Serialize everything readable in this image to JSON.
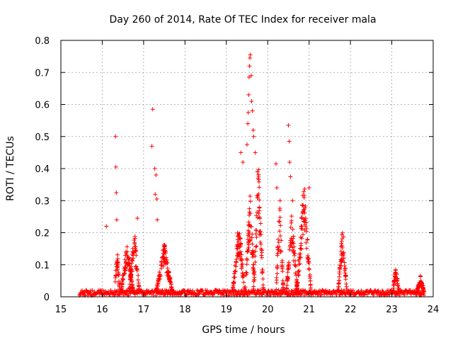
{
  "chart_data": {
    "type": "scatter",
    "title": "Day 260 of 2014, Rate Of TEC Index for receiver mala",
    "xlabel": "GPS time / hours",
    "ylabel": "ROTI / TECUs",
    "xlim": [
      15,
      24
    ],
    "ylim": [
      0,
      0.8
    ],
    "xticks": [
      "15",
      "16",
      "17",
      "18",
      "19",
      "20",
      "21",
      "22",
      "23",
      "24"
    ],
    "yticks": [
      "0",
      "0.1",
      "0.2",
      "0.3",
      "0.4",
      "0.5",
      "0.6",
      "0.7",
      "0.8"
    ],
    "grid": true,
    "marker": "+",
    "color": "#ff0000",
    "time_range": [
      15.45,
      23.78
    ],
    "background_level": 0.015,
    "bursts": [
      {
        "start": 16.3,
        "end": 16.42,
        "peak": 0.15
      },
      {
        "start": 16.45,
        "end": 16.75,
        "peak": 0.16
      },
      {
        "start": 16.65,
        "end": 16.9,
        "peak": 0.2
      },
      {
        "start": 17.3,
        "end": 17.7,
        "peak": 0.15
      },
      {
        "start": 19.15,
        "end": 19.45,
        "peak": 0.22
      },
      {
        "start": 19.45,
        "end": 19.7,
        "peak": 0.3
      },
      {
        "start": 19.65,
        "end": 19.9,
        "peak": 0.38
      },
      {
        "start": 20.2,
        "end": 20.38,
        "peak": 0.3
      },
      {
        "start": 20.45,
        "end": 20.72,
        "peak": 0.25
      },
      {
        "start": 20.7,
        "end": 21.05,
        "peak": 0.34
      },
      {
        "start": 21.7,
        "end": 21.92,
        "peak": 0.21
      },
      {
        "start": 23.02,
        "end": 23.18,
        "peak": 0.08
      },
      {
        "start": 23.6,
        "end": 23.78,
        "peak": 0.05
      }
    ],
    "spikes": [
      {
        "x": 16.1,
        "y": 0.22
      },
      {
        "x": 16.32,
        "y": 0.5
      },
      {
        "x": 16.33,
        "y": 0.405
      },
      {
        "x": 16.34,
        "y": 0.325
      },
      {
        "x": 16.35,
        "y": 0.24
      },
      {
        "x": 16.85,
        "y": 0.245
      },
      {
        "x": 17.2,
        "y": 0.47
      },
      {
        "x": 17.22,
        "y": 0.585
      },
      {
        "x": 17.27,
        "y": 0.4
      },
      {
        "x": 17.28,
        "y": 0.32
      },
      {
        "x": 17.3,
        "y": 0.38
      },
      {
        "x": 17.32,
        "y": 0.305
      },
      {
        "x": 17.33,
        "y": 0.24
      },
      {
        "x": 19.35,
        "y": 0.45
      },
      {
        "x": 19.4,
        "y": 0.42
      },
      {
        "x": 19.5,
        "y": 0.475
      },
      {
        "x": 19.52,
        "y": 0.54
      },
      {
        "x": 19.53,
        "y": 0.575
      },
      {
        "x": 19.54,
        "y": 0.63
      },
      {
        "x": 19.55,
        "y": 0.685
      },
      {
        "x": 19.56,
        "y": 0.72
      },
      {
        "x": 19.57,
        "y": 0.745
      },
      {
        "x": 19.58,
        "y": 0.755
      },
      {
        "x": 19.6,
        "y": 0.69
      },
      {
        "x": 19.61,
        "y": 0.61
      },
      {
        "x": 19.63,
        "y": 0.58
      },
      {
        "x": 19.65,
        "y": 0.52
      },
      {
        "x": 19.66,
        "y": 0.5
      },
      {
        "x": 19.7,
        "y": 0.45
      },
      {
        "x": 19.75,
        "y": 0.39
      },
      {
        "x": 20.2,
        "y": 0.415
      },
      {
        "x": 20.22,
        "y": 0.34
      },
      {
        "x": 20.3,
        "y": 0.3
      },
      {
        "x": 20.5,
        "y": 0.535
      },
      {
        "x": 20.52,
        "y": 0.485
      },
      {
        "x": 20.53,
        "y": 0.42
      },
      {
        "x": 20.55,
        "y": 0.375
      },
      {
        "x": 20.6,
        "y": 0.3
      },
      {
        "x": 21.0,
        "y": 0.34
      }
    ]
  }
}
